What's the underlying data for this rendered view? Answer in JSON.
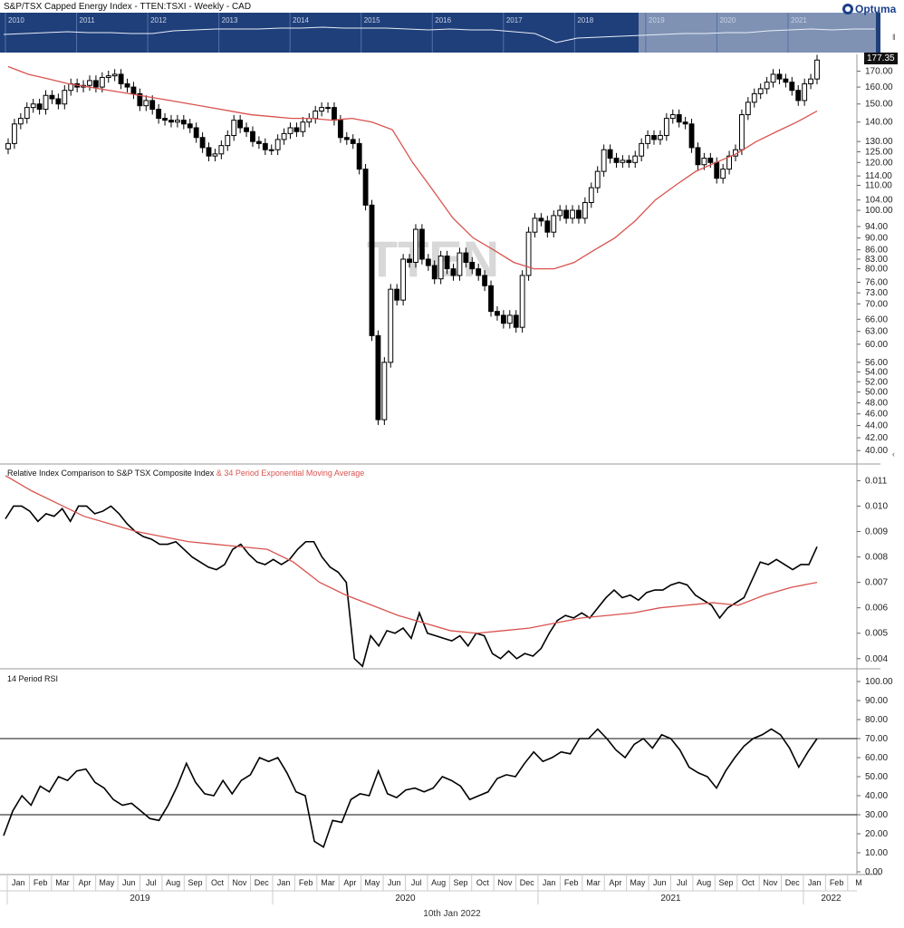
{
  "header": {
    "title": "S&P/TSX Capped Energy Index  - TTEN:TSXI - Weekly - CAD",
    "logo_text": "Optuma"
  },
  "overview": {
    "years": [
      "2010",
      "2011",
      "2012",
      "2013",
      "2014",
      "2015",
      "2016",
      "2017",
      "2018",
      "2019",
      "2020",
      "2021"
    ]
  },
  "watermark": "TTEN",
  "last_price_label": "177.35",
  "footer_date": "10th Jan 2022",
  "colors": {
    "overview_bg": "#1f3f7a",
    "overview_highlight": "#7f92b4",
    "candle": "#000000",
    "ma_line": "#d9534f",
    "grid": "#e6e6e6"
  },
  "x_axis": {
    "months": [
      "Jan",
      "Feb",
      "Mar",
      "Apr",
      "May",
      "Jun",
      "Jul",
      "Aug",
      "Sep",
      "Oct",
      "Nov",
      "Dec",
      "Jan",
      "Feb",
      "Mar",
      "Apr",
      "May",
      "Jun",
      "Jul",
      "Aug",
      "Sep",
      "Oct",
      "Nov",
      "Dec",
      "Jan",
      "Feb",
      "Mar",
      "Apr",
      "May",
      "Jun",
      "Jul",
      "Aug",
      "Sep",
      "Oct",
      "Nov",
      "Dec",
      "Jan",
      "Feb",
      "M"
    ],
    "years": [
      "2019",
      "2020",
      "2021",
      "2022"
    ]
  },
  "chart_data": [
    {
      "type": "candlestick",
      "title": "S&P/TSX Capped Energy Index  - TTEN:TSXI - Weekly - CAD",
      "y_scale": "log",
      "ylim": [
        38,
        180
      ],
      "y_ticks": [
        40,
        42,
        44,
        46,
        48,
        50,
        52,
        54,
        56,
        60,
        63,
        66,
        70,
        73,
        76,
        80,
        83,
        86,
        90,
        94,
        100,
        104,
        110,
        114,
        120,
        125,
        130,
        140,
        150,
        160,
        170
      ],
      "series": [
        {
          "name": "price_closes",
          "values": [
            129,
            139,
            142,
            148,
            150,
            147,
            155,
            153,
            150,
            158,
            162,
            160,
            161,
            164,
            160,
            166,
            167,
            168,
            162,
            160,
            156,
            149,
            152,
            147,
            142,
            141,
            140,
            141,
            139,
            137,
            132,
            127,
            123,
            124,
            128,
            133,
            141,
            137,
            135,
            130,
            129,
            126,
            126,
            131,
            134,
            137,
            135,
            140,
            142,
            146,
            148,
            148,
            141,
            132,
            131,
            129,
            117,
            102,
            62,
            45,
            56,
            74,
            71,
            83,
            82,
            93,
            83,
            81,
            77,
            84,
            80,
            78,
            85,
            82,
            80,
            78,
            75,
            68,
            67,
            65,
            67,
            64,
            78,
            92,
            97,
            96,
            92,
            98,
            100,
            97,
            100,
            97,
            103,
            109,
            116,
            126,
            122,
            120,
            121,
            120,
            123,
            129,
            133,
            131,
            133,
            142,
            144,
            140,
            139,
            127,
            119,
            122,
            120,
            113,
            117,
            123,
            126,
            144,
            151,
            156,
            159,
            163,
            168,
            165,
            163,
            158,
            152,
            162,
            165,
            177.35
          ]
        },
        {
          "name": "34 Period Exponential Moving Average",
          "values": [
            173,
            168,
            165,
            162,
            160,
            158,
            156,
            154,
            152,
            150,
            148,
            146,
            144,
            143,
            142,
            142,
            141,
            142,
            140,
            136,
            120,
            108,
            97,
            90,
            86,
            82,
            80,
            80,
            82,
            86,
            90,
            96,
            104,
            110,
            116,
            120,
            124,
            130,
            135,
            140,
            146
          ]
        }
      ]
    },
    {
      "type": "line",
      "title": "Relative Index Comparison to S&P TSX Composite Index & 34 Period Exponential Moving Average",
      "ylim": [
        0.0036,
        0.0113
      ],
      "y_ticks": [
        0.004,
        0.005,
        0.006,
        0.007,
        0.008,
        0.009,
        0.01,
        0.011
      ],
      "series": [
        {
          "name": "Relative Index Comparison to S&P TSX Composite Index",
          "values": [
            0.0095,
            0.01,
            0.01,
            0.0098,
            0.0094,
            0.0097,
            0.0096,
            0.0099,
            0.0094,
            0.01,
            0.01,
            0.0097,
            0.0098,
            0.01,
            0.0097,
            0.0093,
            0.009,
            0.0088,
            0.0087,
            0.0085,
            0.0085,
            0.0086,
            0.0083,
            0.008,
            0.0078,
            0.0076,
            0.0075,
            0.0077,
            0.0083,
            0.0085,
            0.0081,
            0.0078,
            0.0077,
            0.0079,
            0.0077,
            0.0079,
            0.0083,
            0.0086,
            0.0086,
            0.008,
            0.0076,
            0.0074,
            0.007,
            0.004,
            0.0037,
            0.0049,
            0.0045,
            0.0051,
            0.005,
            0.0052,
            0.0048,
            0.0058,
            0.005,
            0.0049,
            0.0048,
            0.0047,
            0.0049,
            0.0045,
            0.005,
            0.0049,
            0.0042,
            0.004,
            0.0043,
            0.004,
            0.0042,
            0.0041,
            0.0044,
            0.005,
            0.0055,
            0.0057,
            0.0056,
            0.0058,
            0.0056,
            0.006,
            0.0064,
            0.0067,
            0.0064,
            0.0065,
            0.0063,
            0.0066,
            0.0067,
            0.0067,
            0.0069,
            0.007,
            0.0069,
            0.0065,
            0.0063,
            0.0061,
            0.0056,
            0.006,
            0.0062,
            0.0064,
            0.0071,
            0.0078,
            0.0077,
            0.0079,
            0.0077,
            0.0075,
            0.0077,
            0.0077,
            0.0084
          ]
        },
        {
          "name": "34 Period Exponential Moving Average",
          "values": [
            0.0112,
            0.0106,
            0.0101,
            0.0096,
            0.0093,
            0.009,
            0.0088,
            0.0086,
            0.0085,
            0.0084,
            0.0083,
            0.0078,
            0.007,
            0.0065,
            0.0061,
            0.0057,
            0.0054,
            0.0051,
            0.005,
            0.0051,
            0.0052,
            0.0054,
            0.0056,
            0.0057,
            0.0058,
            0.006,
            0.0061,
            0.0062,
            0.0061,
            0.0065,
            0.0068,
            0.007
          ]
        }
      ]
    },
    {
      "type": "line",
      "title": "14 Period RSI",
      "ylim": [
        0,
        100
      ],
      "y_ticks": [
        0,
        10,
        20,
        30,
        40,
        50,
        60,
        70,
        80,
        90,
        100
      ],
      "reference_lines": [
        30,
        70
      ],
      "series": [
        {
          "name": "14 Period RSI",
          "values": [
            19,
            32,
            40,
            35,
            45,
            42,
            50,
            48,
            53,
            54,
            47,
            44,
            38,
            35,
            36,
            32,
            28,
            27,
            35,
            45,
            57,
            47,
            41,
            40,
            48,
            41,
            48,
            51,
            60,
            58,
            60,
            52,
            42,
            40,
            16,
            13,
            27,
            26,
            38,
            41,
            40,
            53,
            41,
            39,
            43,
            44,
            42,
            44,
            50,
            48,
            45,
            38,
            40,
            42,
            49,
            51,
            50,
            57,
            63,
            58,
            60,
            63,
            62,
            70,
            70,
            75,
            70,
            64,
            60,
            67,
            70,
            65,
            72,
            70,
            64,
            55,
            52,
            50,
            44,
            53,
            60,
            66,
            70,
            72,
            75,
            72,
            65,
            55,
            63,
            70
          ]
        }
      ]
    }
  ]
}
